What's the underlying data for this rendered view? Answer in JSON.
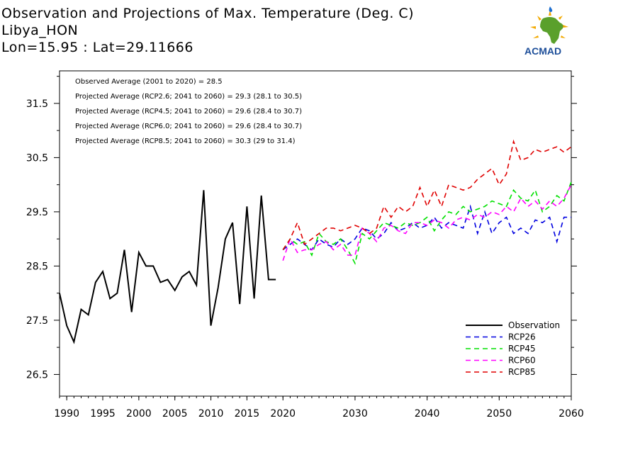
{
  "header": {
    "title": "Observation and Projections of Max. Temperature (Deg. C)",
    "location": "Libya_HON",
    "coords": "Lon=15.95 : Lat=29.11666"
  },
  "logo": {
    "text": "ACMAD",
    "colors": {
      "africa": "#5aa02c",
      "sun": "#f2a900",
      "text": "#1e4f9a"
    }
  },
  "chart_data": {
    "type": "line",
    "title": "Observation and Projections of Max. Temperature (Deg. C)",
    "xlabel": "",
    "ylabel": "",
    "xlim": [
      1989,
      2060
    ],
    "ylim": [
      26.1,
      32.1
    ],
    "x_ticks": [
      1990,
      1995,
      2000,
      2005,
      2010,
      2015,
      2020,
      2030,
      2040,
      2050,
      2060
    ],
    "y_ticks": [
      26.5,
      27.5,
      28.5,
      29.5,
      30.5,
      31.5
    ],
    "annotations": [
      "Observed Average (2001 to 2020) = 28.5",
      "Projected Average (RCP2.6; 2041 to 2060) = 29.3 (28.1 to 30.5)",
      "Projected Average (RCP4.5; 2041 to 2060) = 29.6 (28.4 to 30.7)",
      "Projected Average (RCP6.0; 2041 to 2060) = 29.6 (28.4 to 30.7)",
      "Projected Average (RCP8.5; 2041 to 2060) = 30.3 (29 to 31.4)"
    ],
    "legend_position": "bottom-right",
    "series": [
      {
        "name": "Observation",
        "color": "#000000",
        "dash": "solid",
        "x": [
          1989,
          1990,
          1991,
          1992,
          1993,
          1994,
          1995,
          1996,
          1997,
          1998,
          1999,
          2000,
          2001,
          2002,
          2003,
          2004,
          2005,
          2006,
          2007,
          2008,
          2009,
          2010,
          2011,
          2012,
          2013,
          2014,
          2015,
          2016,
          2017,
          2018,
          2019
        ],
        "y": [
          28.0,
          27.4,
          27.1,
          27.7,
          27.6,
          28.2,
          28.4,
          27.9,
          28.0,
          28.8,
          27.65,
          28.75,
          28.5,
          28.5,
          28.2,
          28.25,
          28.05,
          28.3,
          28.4,
          28.15,
          29.9,
          27.4,
          28.1,
          29.0,
          29.3,
          27.8,
          29.6,
          27.9,
          29.8,
          28.25,
          28.25
        ]
      },
      {
        "name": "RCP26",
        "color": "#0000e0",
        "dash": "dashed",
        "x": [
          2020,
          2021,
          2022,
          2023,
          2024,
          2025,
          2026,
          2027,
          2028,
          2029,
          2030,
          2031,
          2032,
          2033,
          2034,
          2035,
          2036,
          2037,
          2038,
          2039,
          2040,
          2041,
          2042,
          2043,
          2044,
          2045,
          2046,
          2047,
          2048,
          2049,
          2050,
          2051,
          2052,
          2053,
          2054,
          2055,
          2056,
          2057,
          2058,
          2059,
          2060
        ],
        "y": [
          28.8,
          28.9,
          29.0,
          28.9,
          28.8,
          29.0,
          28.9,
          28.85,
          29.0,
          28.9,
          29.0,
          29.2,
          29.15,
          29.0,
          29.1,
          29.3,
          29.15,
          29.2,
          29.3,
          29.2,
          29.25,
          29.4,
          29.2,
          29.3,
          29.25,
          29.2,
          29.6,
          29.1,
          29.5,
          29.1,
          29.3,
          29.4,
          29.1,
          29.2,
          29.1,
          29.35,
          29.3,
          29.4,
          28.95,
          29.4,
          29.4
        ]
      },
      {
        "name": "RCP45",
        "color": "#00e000",
        "dash": "dashed",
        "x": [
          2020,
          2021,
          2022,
          2023,
          2024,
          2025,
          2026,
          2027,
          2028,
          2029,
          2030,
          2031,
          2032,
          2033,
          2034,
          2035,
          2036,
          2037,
          2038,
          2039,
          2040,
          2041,
          2042,
          2043,
          2044,
          2045,
          2046,
          2047,
          2048,
          2049,
          2050,
          2051,
          2052,
          2053,
          2054,
          2055,
          2056,
          2057,
          2058,
          2059,
          2060
        ],
        "y": [
          28.8,
          29.0,
          28.9,
          28.95,
          28.7,
          29.1,
          28.95,
          28.9,
          29.0,
          28.8,
          28.55,
          29.1,
          29.0,
          29.15,
          29.3,
          29.25,
          29.2,
          29.3,
          29.25,
          29.3,
          29.4,
          29.15,
          29.35,
          29.5,
          29.45,
          29.6,
          29.5,
          29.55,
          29.6,
          29.7,
          29.65,
          29.6,
          29.9,
          29.75,
          29.7,
          29.9,
          29.5,
          29.6,
          29.8,
          29.7,
          30.05
        ]
      },
      {
        "name": "RCP60",
        "color": "#ff00ff",
        "dash": "dashed",
        "x": [
          2020,
          2021,
          2022,
          2023,
          2024,
          2025,
          2026,
          2027,
          2028,
          2029,
          2030,
          2031,
          2032,
          2033,
          2034,
          2035,
          2036,
          2037,
          2038,
          2039,
          2040,
          2041,
          2042,
          2043,
          2044,
          2045,
          2046,
          2047,
          2048,
          2049,
          2050,
          2051,
          2052,
          2053,
          2054,
          2055,
          2056,
          2057,
          2058,
          2059,
          2060
        ],
        "y": [
          28.6,
          29.0,
          28.75,
          28.8,
          28.8,
          28.9,
          28.95,
          28.8,
          28.9,
          28.7,
          28.7,
          29.2,
          29.1,
          28.95,
          29.2,
          29.25,
          29.15,
          29.1,
          29.3,
          29.3,
          29.25,
          29.35,
          29.3,
          29.2,
          29.35,
          29.4,
          29.35,
          29.45,
          29.4,
          29.5,
          29.45,
          29.6,
          29.5,
          29.75,
          29.6,
          29.7,
          29.55,
          29.7,
          29.6,
          29.75,
          30.0
        ]
      },
      {
        "name": "RCP85",
        "color": "#e00000",
        "dash": "dashed",
        "x": [
          2020,
          2021,
          2022,
          2023,
          2024,
          2025,
          2026,
          2027,
          2028,
          2029,
          2030,
          2031,
          2032,
          2033,
          2034,
          2035,
          2036,
          2037,
          2038,
          2039,
          2040,
          2041,
          2042,
          2043,
          2044,
          2045,
          2046,
          2047,
          2048,
          2049,
          2050,
          2051,
          2052,
          2053,
          2054,
          2055,
          2056,
          2057,
          2058,
          2059,
          2060
        ],
        "y": [
          28.8,
          29.0,
          29.3,
          28.9,
          29.0,
          29.1,
          29.2,
          29.2,
          29.15,
          29.2,
          29.25,
          29.2,
          29.1,
          29.2,
          29.6,
          29.4,
          29.6,
          29.5,
          29.6,
          29.95,
          29.6,
          29.9,
          29.6,
          30.0,
          29.95,
          29.9,
          29.95,
          30.1,
          30.2,
          30.3,
          30.0,
          30.2,
          30.8,
          30.45,
          30.5,
          30.65,
          30.6,
          30.65,
          30.7,
          30.6,
          30.7
        ]
      }
    ]
  }
}
